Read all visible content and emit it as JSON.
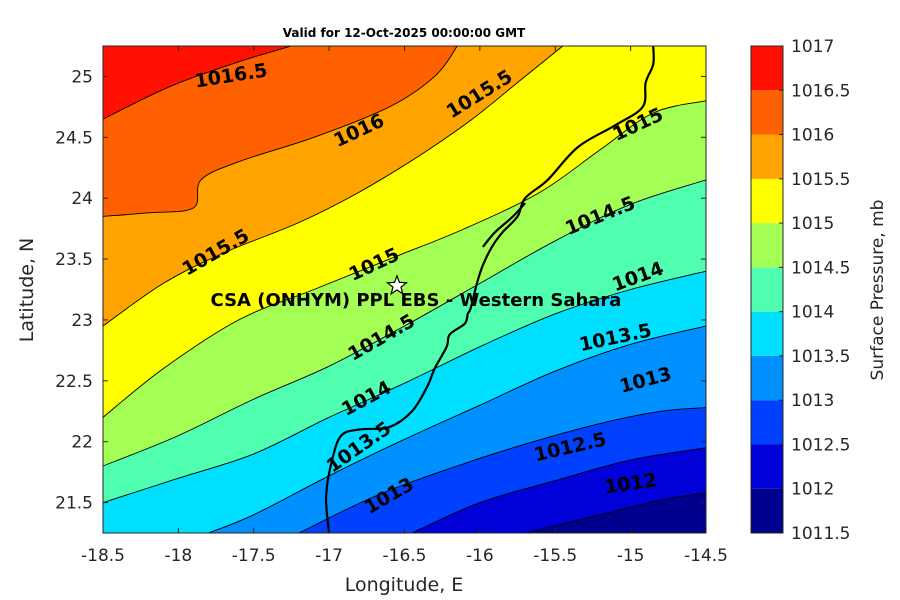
{
  "chart_data": {
    "type": "contour",
    "title": "Valid for 12-Oct-2025 00:00:00 GMT",
    "xlabel": "Longitude, E",
    "ylabel": "Latitude, N",
    "xlim": [
      -18.5,
      -14.5
    ],
    "ylim": [
      21.25,
      25.25
    ],
    "x_ticks": [
      "-18.5",
      "-18",
      "-17.5",
      "-17",
      "-16.5",
      "-16",
      "-15.5",
      "-15",
      "-14.5"
    ],
    "y_ticks": [
      "21.5",
      "22",
      "22.5",
      "23",
      "23.5",
      "24",
      "24.5",
      "25"
    ],
    "colorbar": {
      "label": "Surface Pressure, mb",
      "levels": [
        1011.5,
        1012,
        1012.5,
        1013,
        1013.5,
        1014,
        1014.5,
        1015,
        1015.5,
        1016,
        1016.5,
        1017
      ],
      "tick_labels": [
        "1011.5",
        "1012",
        "1012.5",
        "1013",
        "1013.5",
        "1014",
        "1014.5",
        "1015",
        "1015.5",
        "1016",
        "1016.5",
        "1017"
      ],
      "colors": [
        "#00008f",
        "#0000d9",
        "#0040ff",
        "#0090ff",
        "#00dfff",
        "#4fffaf",
        "#a4ff54",
        "#ffff00",
        "#ffa300",
        "#ff6000",
        "#ff1000",
        "#aa0000"
      ]
    },
    "contours": [
      {
        "level": "1016.5",
        "points": [
          [
            -18.5,
            24.65
          ],
          [
            -18.05,
            24.92
          ],
          [
            -17.6,
            25.12
          ],
          [
            -17.25,
            25.25
          ]
        ]
      },
      {
        "level": "1016",
        "points": [
          [
            -18.5,
            23.85
          ],
          [
            -18.2,
            23.88
          ],
          [
            -17.9,
            23.92
          ],
          [
            -17.85,
            24.15
          ],
          [
            -17.6,
            24.3
          ],
          [
            -17.1,
            24.5
          ],
          [
            -16.6,
            24.75
          ],
          [
            -16.3,
            25.0
          ],
          [
            -16.15,
            25.25
          ]
        ]
      },
      {
        "level": "1015.5",
        "points": [
          [
            -18.5,
            22.95
          ],
          [
            -18.1,
            23.3
          ],
          [
            -17.7,
            23.55
          ],
          [
            -17.2,
            23.8
          ],
          [
            -16.8,
            24.05
          ],
          [
            -16.4,
            24.35
          ],
          [
            -16.05,
            24.65
          ],
          [
            -15.75,
            24.95
          ],
          [
            -15.45,
            25.25
          ]
        ]
      },
      {
        "level": "1015",
        "points": [
          [
            -18.5,
            22.2
          ],
          [
            -18.1,
            22.6
          ],
          [
            -17.6,
            23.0
          ],
          [
            -17.1,
            23.25
          ],
          [
            -16.6,
            23.5
          ],
          [
            -16.1,
            23.75
          ],
          [
            -15.6,
            24.05
          ],
          [
            -15.2,
            24.4
          ],
          [
            -14.85,
            24.7
          ],
          [
            -14.5,
            24.8
          ]
        ]
      },
      {
        "level": "1014.5",
        "points": [
          [
            -18.5,
            21.8
          ],
          [
            -18.0,
            22.05
          ],
          [
            -17.5,
            22.35
          ],
          [
            -17.0,
            22.62
          ],
          [
            -16.5,
            22.95
          ],
          [
            -16.0,
            23.3
          ],
          [
            -15.5,
            23.65
          ],
          [
            -15.0,
            23.95
          ],
          [
            -14.5,
            24.15
          ]
        ]
      },
      {
        "level": "1014",
        "points": [
          [
            -18.5,
            21.5
          ],
          [
            -18.0,
            21.7
          ],
          [
            -17.5,
            21.9
          ],
          [
            -17.0,
            22.2
          ],
          [
            -16.5,
            22.48
          ],
          [
            -16.0,
            22.78
          ],
          [
            -15.5,
            23.05
          ],
          [
            -15.0,
            23.25
          ],
          [
            -14.5,
            23.4
          ]
        ]
      },
      {
        "level": "1013.5",
        "points": [
          [
            -17.8,
            21.25
          ],
          [
            -17.5,
            21.4
          ],
          [
            -17.0,
            21.72
          ],
          [
            -16.5,
            22.02
          ],
          [
            -16.0,
            22.3
          ],
          [
            -15.5,
            22.58
          ],
          [
            -15.0,
            22.8
          ],
          [
            -14.5,
            22.95
          ]
        ]
      },
      {
        "level": "1013",
        "points": [
          [
            -17.2,
            21.25
          ],
          [
            -16.7,
            21.55
          ],
          [
            -16.2,
            21.78
          ],
          [
            -15.7,
            21.98
          ],
          [
            -15.2,
            22.15
          ],
          [
            -14.8,
            22.25
          ],
          [
            -14.5,
            22.28
          ]
        ]
      },
      {
        "level": "1012.5",
        "points": [
          [
            -16.45,
            21.25
          ],
          [
            -16.0,
            21.5
          ],
          [
            -15.5,
            21.68
          ],
          [
            -15.0,
            21.85
          ],
          [
            -14.5,
            21.95
          ]
        ]
      },
      {
        "level": "1012",
        "points": [
          [
            -15.7,
            21.25
          ],
          [
            -15.2,
            21.4
          ],
          [
            -14.8,
            21.52
          ],
          [
            -14.5,
            21.58
          ]
        ]
      }
    ],
    "contour_labels": [
      {
        "text": "1016.5",
        "at": [
          -17.65,
          25.0
        ],
        "angle": -9
      },
      {
        "text": "1016",
        "at": [
          -16.8,
          24.55
        ],
        "angle": -25
      },
      {
        "text": "1015.5",
        "at": [
          -16.0,
          24.85
        ],
        "angle": -32
      },
      {
        "text": "1015",
        "at": [
          -14.95,
          24.6
        ],
        "angle": -25
      },
      {
        "text": "1015.5",
        "at": [
          -17.75,
          23.55
        ],
        "angle": -30
      },
      {
        "text": "1015",
        "at": [
          -16.7,
          23.45
        ],
        "angle": -25
      },
      {
        "text": "1014.5",
        "at": [
          -15.2,
          23.85
        ],
        "angle": -22
      },
      {
        "text": "1014",
        "at": [
          -14.95,
          23.35
        ],
        "angle": -20
      },
      {
        "text": "1014.5",
        "at": [
          -16.65,
          22.85
        ],
        "angle": -30
      },
      {
        "text": "1013.5",
        "at": [
          -15.1,
          22.85
        ],
        "angle": -12
      },
      {
        "text": "1014",
        "at": [
          -16.75,
          22.35
        ],
        "angle": -28
      },
      {
        "text": "1013",
        "at": [
          -14.9,
          22.5
        ],
        "angle": -15
      },
      {
        "text": "1013.5",
        "at": [
          -16.8,
          21.95
        ],
        "angle": -35
      },
      {
        "text": "1012.5",
        "at": [
          -15.4,
          21.95
        ],
        "angle": -13
      },
      {
        "text": "1013",
        "at": [
          -16.6,
          21.55
        ],
        "angle": -30
      },
      {
        "text": "1012",
        "at": [
          -15.0,
          21.65
        ],
        "angle": -8
      }
    ],
    "coastline": [
      [
        -17.0,
        21.25
      ],
      [
        -17.02,
        21.55
      ],
      [
        -16.98,
        21.85
      ],
      [
        -16.92,
        22.05
      ],
      [
        -16.8,
        22.1
      ],
      [
        -16.6,
        22.12
      ],
      [
        -16.45,
        22.25
      ],
      [
        -16.35,
        22.45
      ],
      [
        -16.3,
        22.6
      ],
      [
        -16.22,
        22.78
      ],
      [
        -16.2,
        22.88
      ],
      [
        -16.1,
        22.97
      ],
      [
        -16.08,
        23.05
      ],
      [
        -16.06,
        23.1
      ],
      [
        -16.02,
        23.3
      ],
      [
        -15.98,
        23.45
      ],
      [
        -15.92,
        23.6
      ],
      [
        -15.85,
        23.72
      ],
      [
        -15.75,
        23.85
      ],
      [
        -15.7,
        24.0
      ],
      [
        -15.55,
        24.15
      ],
      [
        -15.35,
        24.42
      ],
      [
        -15.1,
        24.6
      ],
      [
        -14.92,
        24.75
      ],
      [
        -14.9,
        24.95
      ],
      [
        -14.85,
        25.1
      ],
      [
        -14.85,
        25.25
      ]
    ],
    "peninsula": [
      [
        -15.98,
        23.6
      ],
      [
        -15.9,
        23.72
      ],
      [
        -15.78,
        23.85
      ],
      [
        -15.7,
        23.96
      ]
    ],
    "marker": {
      "label": "CSA (ONHYM) PPL EBS  - Western Sahara",
      "lon": -16.55,
      "lat": 23.28
    }
  }
}
